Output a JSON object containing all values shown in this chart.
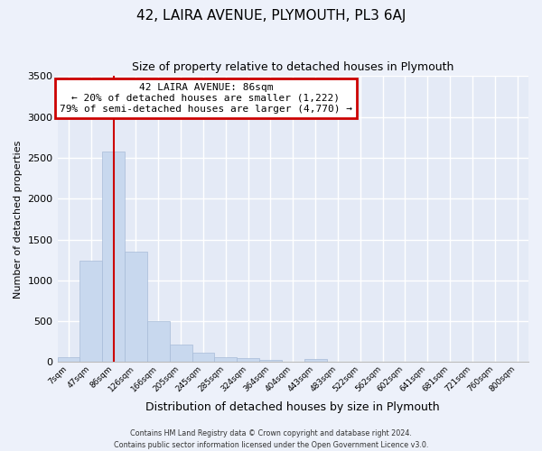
{
  "title": "42, LAIRA AVENUE, PLYMOUTH, PL3 6AJ",
  "subtitle": "Size of property relative to detached houses in Plymouth",
  "xlabel": "Distribution of detached houses by size in Plymouth",
  "ylabel": "Number of detached properties",
  "bar_labels": [
    "7sqm",
    "47sqm",
    "86sqm",
    "126sqm",
    "166sqm",
    "205sqm",
    "245sqm",
    "285sqm",
    "324sqm",
    "364sqm",
    "404sqm",
    "443sqm",
    "483sqm",
    "522sqm",
    "562sqm",
    "602sqm",
    "641sqm",
    "681sqm",
    "721sqm",
    "760sqm",
    "800sqm"
  ],
  "bar_heights": [
    55,
    1240,
    2580,
    1350,
    500,
    215,
    110,
    55,
    50,
    30,
    0,
    35,
    0,
    0,
    0,
    0,
    0,
    0,
    0,
    0,
    0
  ],
  "bar_color": "#c8d8ee",
  "bar_edge_color": "#a8bcd8",
  "ylim": [
    0,
    3500
  ],
  "yticks": [
    0,
    500,
    1000,
    1500,
    2000,
    2500,
    3000,
    3500
  ],
  "vline_x_idx": 2,
  "vline_color": "#cc0000",
  "annotation_title": "42 LAIRA AVENUE: 86sqm",
  "annotation_line1": "← 20% of detached houses are smaller (1,222)",
  "annotation_line2": "79% of semi-detached houses are larger (4,770) →",
  "annotation_box_color": "#cc0000",
  "footer_line1": "Contains HM Land Registry data © Crown copyright and database right 2024.",
  "footer_line2": "Contains public sector information licensed under the Open Government Licence v3.0.",
  "bg_color": "#edf1fa",
  "plot_bg_color": "#e4eaf6",
  "grid_color": "#ffffff",
  "title_fontsize": 11,
  "subtitle_fontsize": 9,
  "ylabel_fontsize": 8,
  "xlabel_fontsize": 9,
  "tick_fontsize": 8,
  "xtick_fontsize": 6.5,
  "footer_fontsize": 5.8,
  "annot_fontsize": 8
}
